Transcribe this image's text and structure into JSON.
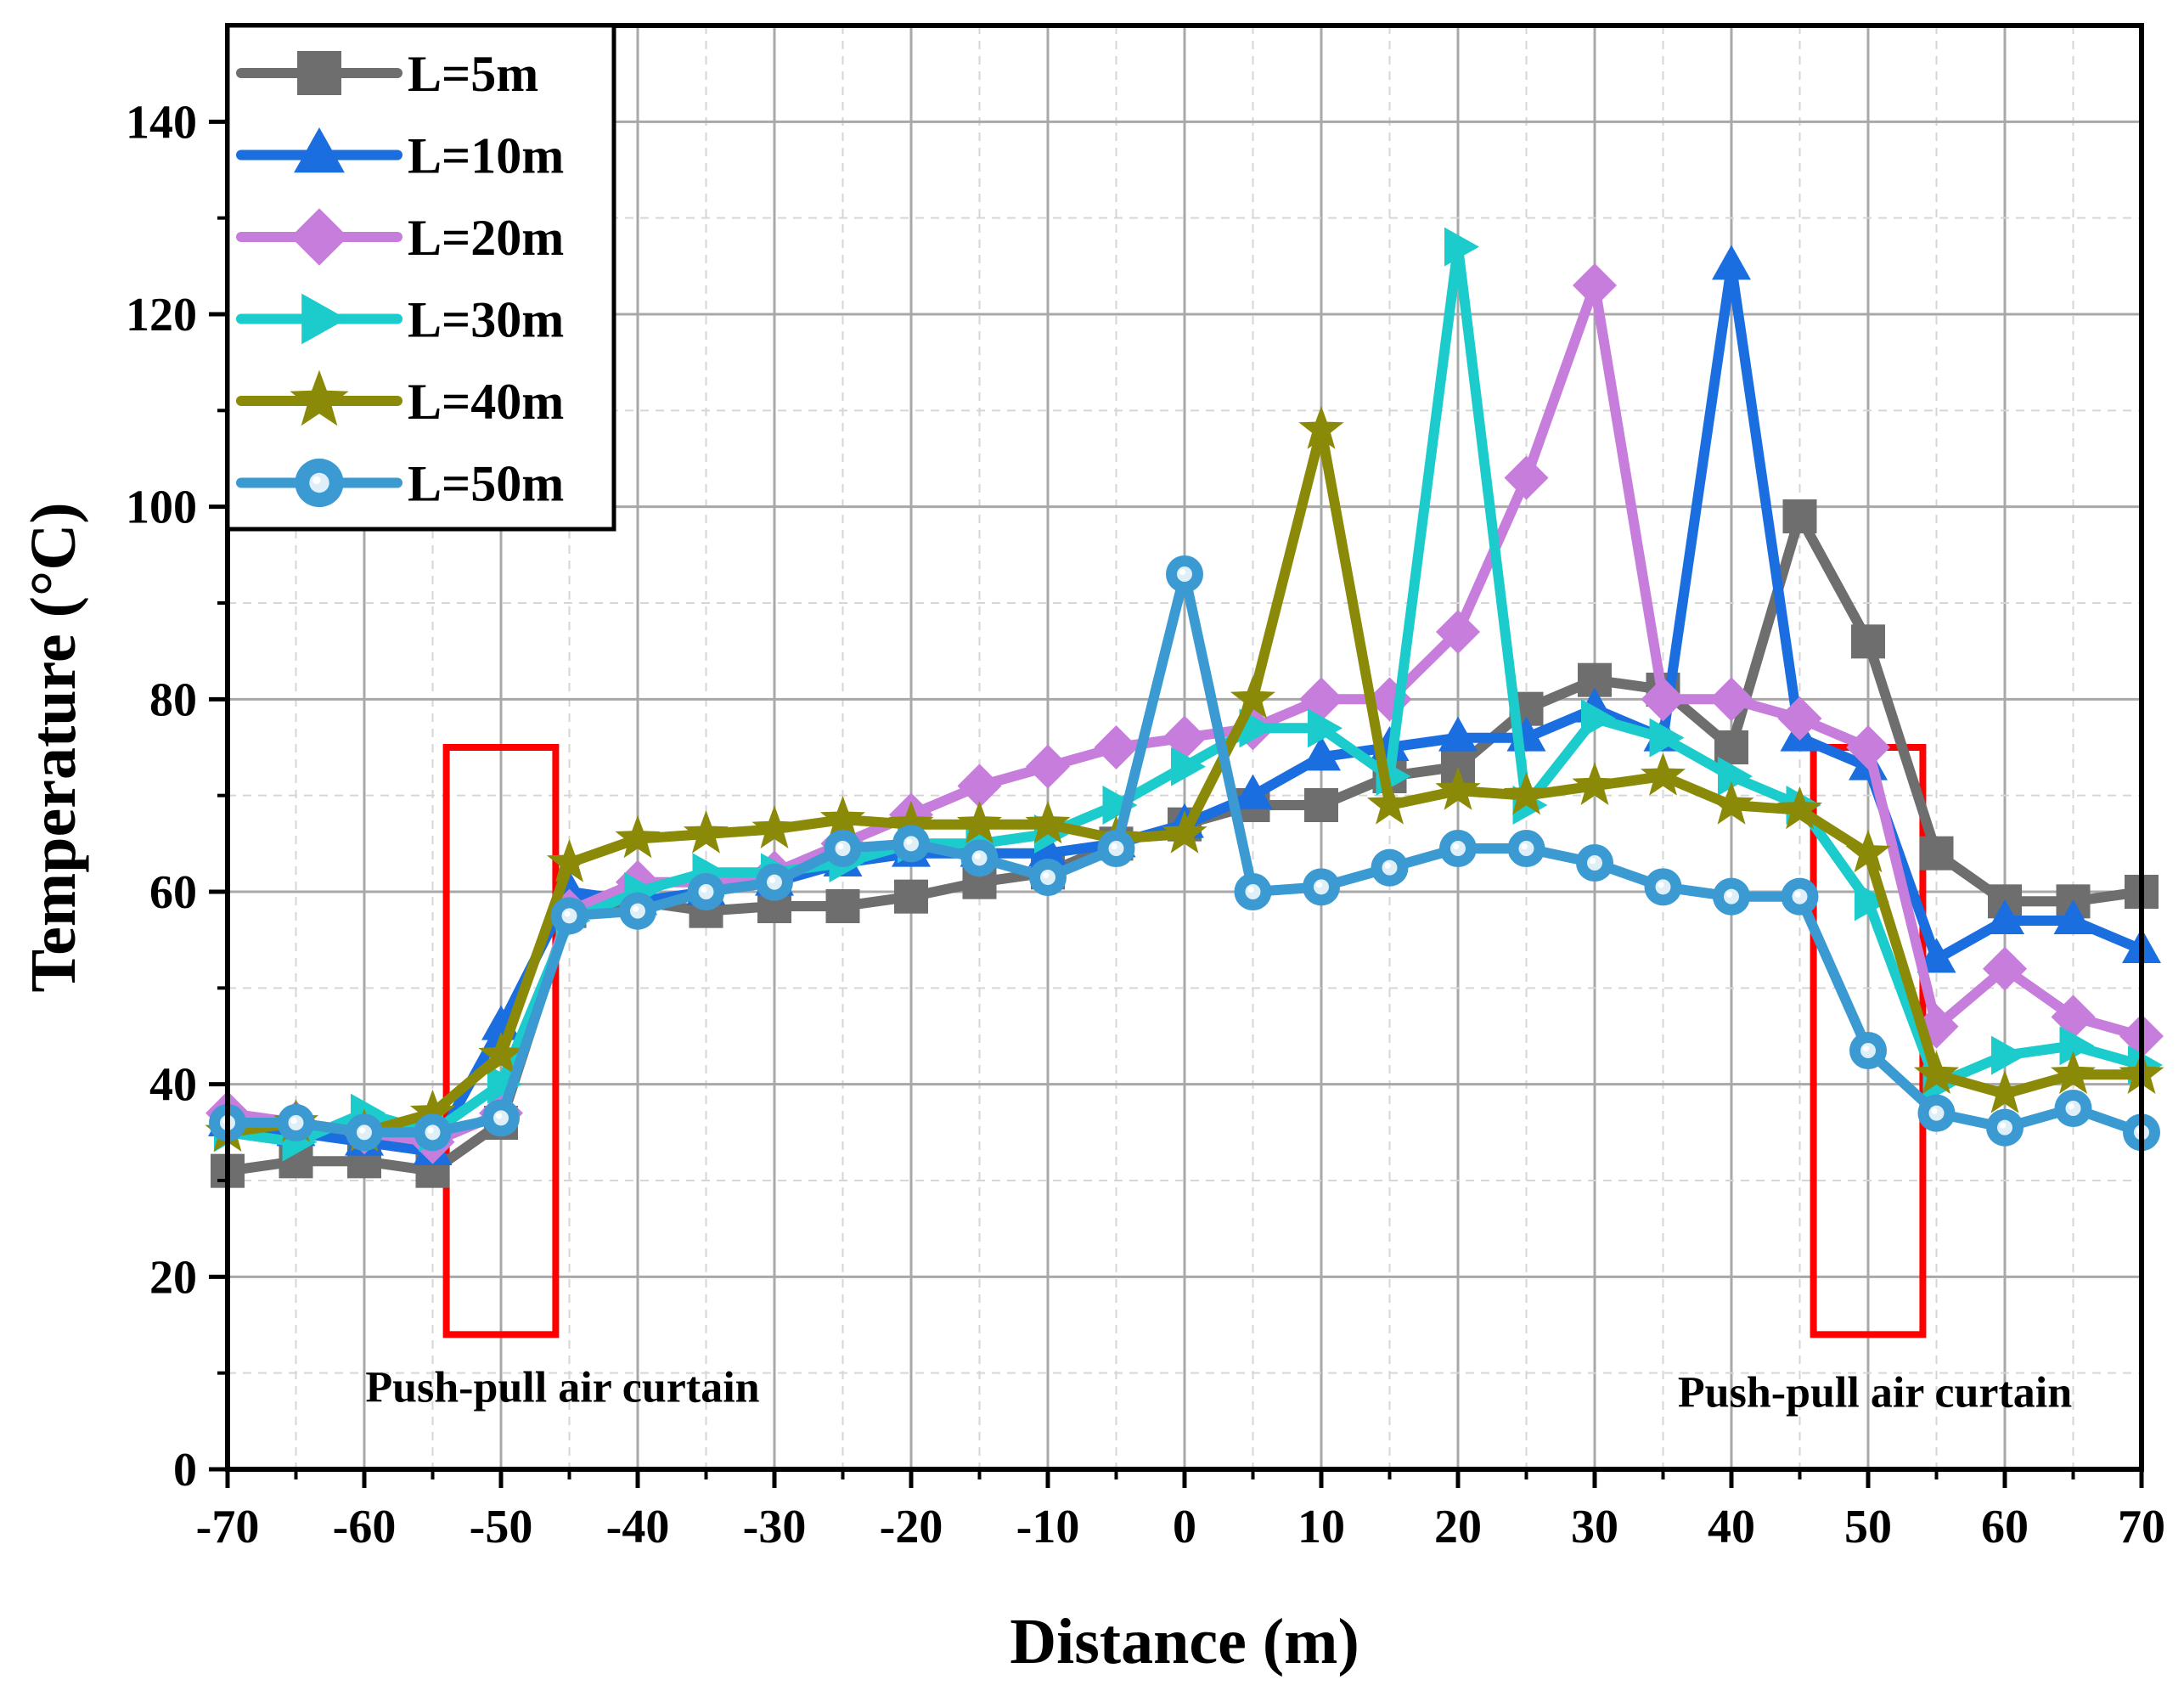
{
  "chart_data": {
    "type": "line",
    "title": "",
    "xlabel": "Distance (m)",
    "ylabel": "Temperature (°C)",
    "xlim": [
      -70,
      70
    ],
    "ylim": [
      0,
      150
    ],
    "xticks": [
      -70,
      -60,
      -50,
      -40,
      -30,
      -20,
      -10,
      0,
      10,
      20,
      30,
      40,
      50,
      60,
      70
    ],
    "yticks": [
      0,
      20,
      40,
      60,
      80,
      100,
      120,
      140
    ],
    "grid": true,
    "legend_position": "top-left",
    "x": [
      -70,
      -65,
      -60,
      -55,
      -50,
      -45,
      -40,
      -35,
      -30,
      -25,
      -20,
      -15,
      -10,
      -5,
      0,
      5,
      10,
      15,
      20,
      25,
      30,
      35,
      40,
      45,
      50,
      55,
      60,
      65,
      70
    ],
    "series": [
      {
        "name": "L=5m",
        "color": "#6e6e6e",
        "marker": "square",
        "values": [
          31,
          32,
          32,
          31,
          36,
          58,
          59,
          58,
          58.5,
          58.5,
          59.5,
          61,
          62,
          65,
          67,
          69,
          69,
          72,
          73,
          79,
          82,
          81,
          75,
          99,
          86,
          64,
          59,
          59,
          60
        ]
      },
      {
        "name": "L=10m",
        "color": "#1a6ee0",
        "marker": "triangle-up",
        "values": [
          36,
          35,
          34,
          33,
          46,
          60,
          59,
          60,
          61,
          63,
          64,
          64,
          64,
          65,
          67,
          70,
          74,
          75,
          76,
          76,
          79,
          76,
          125,
          76,
          73,
          53,
          57,
          57,
          54
        ]
      },
      {
        "name": "L=20m",
        "color": "#c77ddb",
        "marker": "diamond",
        "values": [
          37,
          36,
          35,
          34,
          37,
          58,
          61,
          61,
          62,
          65,
          68,
          71,
          73,
          75,
          76,
          77,
          80,
          80,
          87,
          103,
          123,
          80,
          80,
          78,
          75,
          46,
          52,
          47,
          45
        ]
      },
      {
        "name": "L=30m",
        "color": "#1ccbcb",
        "marker": "triangle-right",
        "values": [
          35,
          34,
          37,
          35,
          40,
          57,
          60,
          62,
          62,
          63,
          65,
          65,
          66,
          69,
          73,
          77,
          77,
          72,
          127,
          69,
          78,
          76,
          72,
          69,
          59,
          40,
          43,
          44,
          42
        ]
      },
      {
        "name": "L=40m",
        "color": "#8a8a08",
        "marker": "star",
        "values": [
          35,
          36,
          35,
          37,
          43,
          63,
          65.5,
          66,
          66.5,
          67.5,
          67,
          67,
          67,
          65.5,
          66,
          80,
          108,
          69,
          70.5,
          70,
          71,
          72,
          69,
          68.5,
          64,
          41,
          39,
          41,
          41
        ]
      },
      {
        "name": "L=50m",
        "color": "#3b9ad2",
        "marker": "circle",
        "values": [
          36,
          36,
          35,
          35,
          36.5,
          57.5,
          58,
          60,
          61,
          64.5,
          65,
          63.5,
          61.5,
          64.5,
          93,
          60,
          60.5,
          62.5,
          64.5,
          64.5,
          63,
          60.5,
          59.5,
          59.5,
          43.5,
          37,
          35.5,
          37.5,
          35
        ]
      }
    ],
    "annotations": [
      {
        "text": "Push-pull air curtain",
        "near_x": -50,
        "box_x_range": [
          -54,
          -46
        ],
        "box_y_range": [
          14,
          75
        ]
      },
      {
        "text": "Push-pull air curtain",
        "near_x": 50,
        "box_x_range": [
          46,
          54
        ],
        "box_y_range": [
          14,
          75
        ]
      }
    ],
    "annotation_box_color": "#ff0000"
  }
}
